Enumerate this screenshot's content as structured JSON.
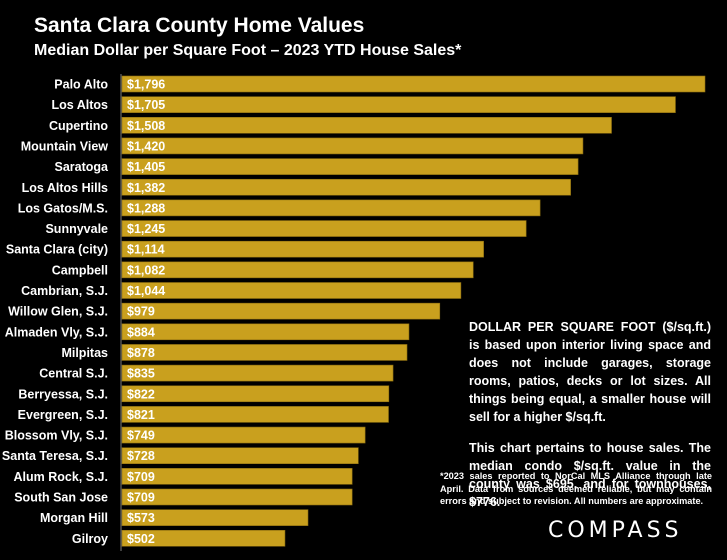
{
  "header": {
    "title": "Santa Clara County Home Values",
    "subtitle": "Median Dollar per Square Foot – 2023 YTD House Sales*"
  },
  "notes": {
    "definition": "DOLLAR PER SQUARE FOOT ($/sq.ft.) is based upon interior living space and does not include garages, storage rooms, patios, decks or lot sizes. All things being equal, a smaller house will sell for a higher $/sq.ft.",
    "pertains": "This chart pertains to house sales. The median condo $/sq.ft. value in the county was $695, and for townhouses, $776.",
    "footnote": "*2023 sales reported to NorCal MLS Alliance through late April. Data from sources deemed reliable, but may contain errors and subject to revision. All numbers are approximate."
  },
  "brand": {
    "logo_text": "COMPASS"
  },
  "colors": {
    "bar": "#c9a01e",
    "bar_edge": "#8a6c10",
    "background": "#000000",
    "text": "#ffffff"
  },
  "chart_data": {
    "type": "bar",
    "orientation": "horizontal",
    "title": "Santa Clara County Home Values",
    "subtitle": "Median Dollar per Square Foot – 2023 YTD House Sales*",
    "xlim": [
      0,
      1796
    ],
    "grid": false,
    "categories": [
      "Palo Alto",
      "Los Altos",
      "Cupertino",
      "Mountain View",
      "Saratoga",
      "Los Altos Hills",
      "Los Gatos/M.S.",
      "Sunnyvale",
      "Santa Clara (city)",
      "Campbell",
      "Cambrian, S.J.",
      "Willow Glen, S.J.",
      "Almaden Vly, S.J.",
      "Milpitas",
      "Central S.J.",
      "Berryessa, S.J.",
      "Evergreen, S.J.",
      "Blossom Vly, S.J.",
      "Santa Teresa, S.J.",
      "Alum Rock, S.J.",
      "South San Jose",
      "Morgan Hill",
      "Gilroy"
    ],
    "values": [
      1796,
      1705,
      1508,
      1420,
      1405,
      1382,
      1288,
      1245,
      1114,
      1082,
      1044,
      979,
      884,
      878,
      835,
      822,
      821,
      749,
      728,
      709,
      709,
      573,
      502
    ],
    "labels": [
      "$1,796",
      "$1,705",
      "$1,508",
      "$1,420",
      "$1,405",
      "$1,382",
      "$1,288",
      "$1,245",
      "$1,114",
      "$1,082",
      "$1,044",
      "$979",
      "$884",
      "$878",
      "$835",
      "$822",
      "$821",
      "$749",
      "$728",
      "$709",
      "$709",
      "$573",
      "$502"
    ]
  }
}
